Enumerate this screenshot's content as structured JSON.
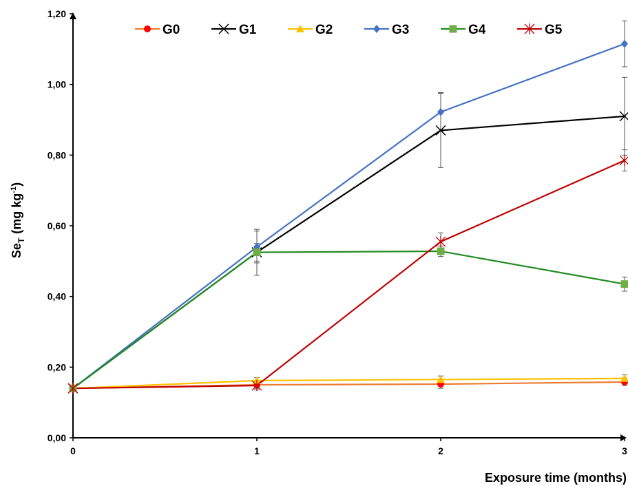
{
  "chart_data": {
    "type": "line",
    "x": [
      0,
      1,
      2,
      3
    ],
    "x_tick_labels": [
      "0",
      "1",
      "2",
      "3"
    ],
    "y_tick_labels": [
      "0,00",
      "0,20",
      "0,40",
      "0,60",
      "0,80",
      "1,00",
      "1,20"
    ],
    "xlim": [
      0,
      3
    ],
    "ylim": [
      0,
      1.2
    ],
    "xlabel": "Exposure time (months)",
    "ylabel_main": "Se",
    "ylabel_sub": "T",
    "ylabel_unit_pre": "(mg kg",
    "ylabel_unit_sup": "-1",
    "ylabel_unit_post": ")",
    "grid": false,
    "legend_position": "top",
    "series": [
      {
        "name": "G0",
        "color": "#FF0000",
        "line_color": "#ED7D31",
        "marker": "circle",
        "values": [
          0.14,
          0.15,
          0.152,
          0.158
        ],
        "errors": [
          0.0,
          0.01,
          0.012,
          0.01
        ]
      },
      {
        "name": "G1",
        "color": "#000000",
        "line_color": "#000000",
        "marker": "x",
        "values": [
          0.14,
          0.525,
          0.87,
          0.91
        ],
        "errors": [
          0.0,
          0.025,
          0.105,
          0.11
        ]
      },
      {
        "name": "G2",
        "color": "#FFC000",
        "line_color": "#FFC000",
        "marker": "triangle",
        "values": [
          0.14,
          0.162,
          0.165,
          0.168
        ],
        "errors": [
          0.0,
          0.008,
          0.01,
          0.01
        ]
      },
      {
        "name": "G3",
        "color": "#4472C4",
        "line_color": "#4472C4",
        "marker": "diamond",
        "values": [
          0.14,
          0.54,
          0.922,
          1.115
        ],
        "errors": [
          0.0,
          0.045,
          0.055,
          0.065
        ]
      },
      {
        "name": "G4",
        "color": "#70AD47",
        "line_color": "#228B22",
        "marker": "square",
        "values": [
          0.14,
          0.525,
          0.528,
          0.435
        ],
        "errors": [
          0.0,
          0.065,
          0.015,
          0.02
        ]
      },
      {
        "name": "G5",
        "color": "#C00000",
        "line_color": "#C00000",
        "marker": "asterisk",
        "values": [
          0.14,
          0.148,
          0.555,
          0.785
        ],
        "errors": [
          0.0,
          0.012,
          0.025,
          0.03
        ]
      }
    ]
  }
}
